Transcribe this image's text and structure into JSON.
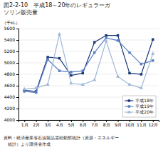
{
  "chart_data": {
    "type": "line",
    "title": [
      "図2-2-10　平成18～20年のレギュラーガ",
      "ソリン販売量"
    ],
    "ylabel": "（千kL）",
    "annotations": [
      "資料：経済産業省石油製品需給動態統計（資源・エネルギー",
      "　統計）より環境省作成"
    ],
    "categories": [
      "1月",
      "2月",
      "3月",
      "4月",
      "5月",
      "6月",
      "7月",
      "8月",
      "9月",
      "10月",
      "11月",
      "12月"
    ],
    "series": [
      {
        "name": "平成18年",
        "color": "#1a3a7a",
        "marker": "square",
        "values": [
          4520,
          4500,
          5100,
          5080,
          4780,
          4820,
          5360,
          5480,
          5480,
          4820,
          4800,
          5410
        ]
      },
      {
        "name": "平成19年",
        "color": "#5b7fc4",
        "marker": "square",
        "values": [
          4500,
          4480,
          5060,
          4860,
          4840,
          4860,
          5180,
          5440,
          5390,
          5180,
          4980,
          5040
        ]
      },
      {
        "name": "平成20年",
        "color": "#a0b8d8",
        "marker": "triangle",
        "values": [
          4540,
          4560,
          4620,
          5500,
          4640,
          4620,
          4700,
          5380,
          4760,
          4620,
          4560,
          5160
        ]
      }
    ],
    "ylim": [
      4000,
      5600
    ],
    "yticks": [
      4000,
      4200,
      4400,
      4600,
      4800,
      5000,
      5200,
      5400,
      5600
    ],
    "grid": "y",
    "legend": "lower right"
  }
}
